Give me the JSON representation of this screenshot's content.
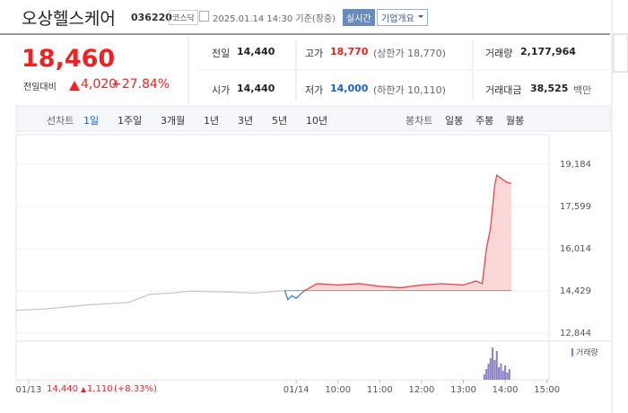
{
  "header": {
    "title": "오상헬스케어",
    "code": "036220",
    "market": "코스닥",
    "date": "2025.01.14 14:30 기준(장중)",
    "realtime": "실시간",
    "company_button": "기업개요"
  },
  "price": {
    "current": "18,460",
    "change_label": "전일대비",
    "change": "4,020",
    "rate": "+27.84%"
  },
  "stats": [
    [
      {
        "label": "전일",
        "value": "14,440",
        "extra": ""
      },
      {
        "label": "고가",
        "value": "18,770",
        "extra": "(상한가 18,770)"
      },
      {
        "label": "거래량",
        "value": "2,177,964",
        "extra": ""
      }
    ],
    [
      {
        "label": "시가",
        "value": "14,440",
        "extra": ""
      },
      {
        "label": "저가",
        "value": "14,000",
        "extra": "(하한가 10,110)"
      },
      {
        "label": "거래대금",
        "value": "38,525",
        "extra": "백만"
      }
    ]
  ],
  "tabs": {
    "line_label": "선차트",
    "line_items": [
      "1일",
      "1주일",
      "3개월",
      "1년",
      "3년",
      "5년",
      "10년"
    ],
    "candle_label": "봉차트",
    "candle_items": [
      "일봉",
      "주봉",
      "월봉"
    ]
  },
  "chart_data": {
    "type": "line",
    "ylim": [
      12844,
      19184
    ],
    "yticks": [
      {
        "value": 12844,
        "label": "12,844"
      },
      {
        "value": 14429,
        "label": "14,429"
      },
      {
        "value": 16014,
        "label": "16,014"
      },
      {
        "value": 17599,
        "label": "17,599"
      },
      {
        "value": 19184,
        "label": "19,184"
      }
    ],
    "xlim": [
      2.3,
      15.05
    ],
    "xticks": [
      {
        "value": 2.6,
        "label": "01/13"
      },
      {
        "value": 9,
        "label": "01/14"
      },
      {
        "value": 10,
        "label": "10:00"
      },
      {
        "value": 11,
        "label": "11:00"
      },
      {
        "value": 12,
        "label": "12:00"
      },
      {
        "value": 13,
        "label": "13:00"
      },
      {
        "value": 14,
        "label": "14:00"
      },
      {
        "value": 15,
        "label": "15:00"
      }
    ],
    "baseline": 14440,
    "series": [
      {
        "color": "#c8c8c8",
        "x": [
          2.3,
          3,
          4,
          5,
          5.5,
          6,
          6.5,
          7,
          7.5,
          8,
          8.73
        ],
        "values": [
          13700,
          13750,
          13900,
          14000,
          14300,
          14350,
          14420,
          14400,
          14380,
          14350,
          14440
        ]
      },
      {
        "color": "#3d7bd9",
        "x": [
          8.73,
          8.8,
          8.9,
          9,
          9.1,
          9.2
        ],
        "values": [
          14440,
          14100,
          14250,
          14150,
          14300,
          14440
        ]
      },
      {
        "color": "#e8474a",
        "x": [
          9.2,
          9.5,
          10,
          10.5,
          11,
          11.5,
          12,
          12.5,
          13,
          13.3,
          13.45,
          13.55,
          13.65,
          13.75,
          13.8,
          13.95,
          14.05,
          14.15
        ],
        "values": [
          14440,
          14700,
          14650,
          14700,
          14600,
          14550,
          14650,
          14700,
          14650,
          14800,
          14700,
          16000,
          16800,
          18400,
          18770,
          18600,
          18500,
          18460
        ]
      }
    ],
    "volume": {
      "label": "거래량",
      "color": "#8a7fc4",
      "ylim": [
        0,
        200000
      ],
      "x": [
        13.5,
        13.55,
        13.6,
        13.65,
        13.7,
        13.75,
        13.8,
        13.85,
        13.9,
        13.95,
        14.0,
        14.05,
        14.1
      ],
      "values": [
        30000,
        60000,
        90000,
        120000,
        180000,
        110000,
        160000,
        70000,
        90000,
        50000,
        80000,
        40000,
        60000
      ]
    }
  },
  "footer": {
    "price": "14,440",
    "change": "1,110",
    "rate": "(+8.33%)"
  }
}
